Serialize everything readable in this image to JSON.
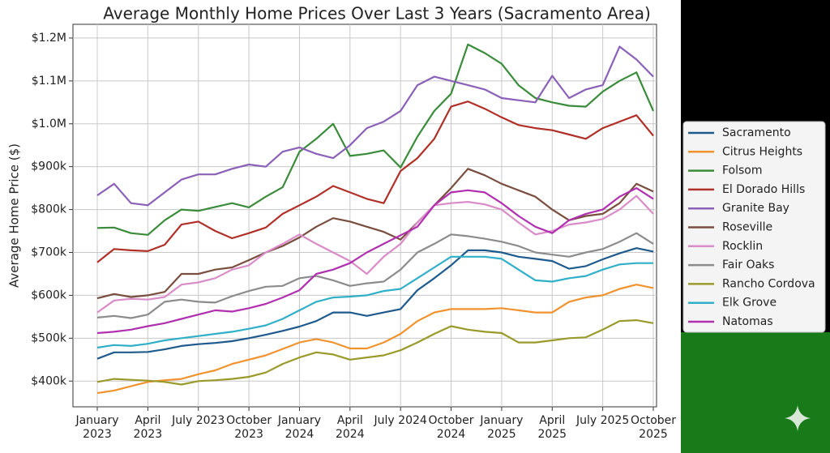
{
  "chart_data": {
    "type": "line",
    "title": "Average Monthly Home Prices Over Last 3 Years (Sacramento Area)",
    "y_label": "Average Home Price ($)",
    "grid": true,
    "legend": "right",
    "x": [
      "2023-01",
      "2023-02",
      "2023-03",
      "2023-04",
      "2023-05",
      "2023-06",
      "2023-07",
      "2023-08",
      "2023-09",
      "2023-10",
      "2023-11",
      "2023-12",
      "2024-01",
      "2024-02",
      "2024-03",
      "2024-04",
      "2024-05",
      "2024-06",
      "2024-07",
      "2024-08",
      "2024-09",
      "2024-10",
      "2024-11",
      "2024-12",
      "2025-01",
      "2025-02",
      "2025-03",
      "2025-04",
      "2025-05",
      "2025-06",
      "2025-07",
      "2025-08",
      "2025-09",
      "2025-10"
    ],
    "xticks": [
      {
        "value": "2023-01",
        "label": "January 2023"
      },
      {
        "value": "2023-04",
        "label": "April 2023"
      },
      {
        "value": "2023-07",
        "label": "July 2023"
      },
      {
        "value": "2023-10",
        "label": "October 2023"
      },
      {
        "value": "2024-01",
        "label": "January 2024"
      },
      {
        "value": "2024-04",
        "label": "April 2024"
      },
      {
        "value": "2024-07",
        "label": "July 2024"
      },
      {
        "value": "2024-10",
        "label": "October 2024"
      },
      {
        "value": "2025-01",
        "label": "January 2025"
      },
      {
        "value": "2025-04",
        "label": "April 2025"
      },
      {
        "value": "2025-07",
        "label": "July 2025"
      },
      {
        "value": "2025-10",
        "label": "October 2025"
      }
    ],
    "ylim": [
      340000,
      1232000
    ],
    "yticks": [
      {
        "value": 400000,
        "label": "$400k"
      },
      {
        "value": 500000,
        "label": "$500k"
      },
      {
        "value": 600000,
        "label": "$600k"
      },
      {
        "value": 700000,
        "label": "$700k"
      },
      {
        "value": 800000,
        "label": "$800k"
      },
      {
        "value": 900000,
        "label": "$900k"
      },
      {
        "value": 1000000,
        "label": "$1.0M"
      },
      {
        "value": 1100000,
        "label": "$1.1M"
      },
      {
        "value": 1200000,
        "label": "$1.2M"
      }
    ],
    "series": [
      {
        "name": "Sacramento",
        "color": "#1f5a8c",
        "values": [
          452000,
          467000,
          467000,
          468000,
          474000,
          482000,
          486000,
          489000,
          493000,
          500000,
          508000,
          517000,
          527000,
          540000,
          560000,
          560000,
          552000,
          560000,
          568000,
          612000,
          640000,
          670000,
          705000,
          705000,
          700000,
          690000,
          685000,
          680000,
          662000,
          668000,
          684000,
          698000,
          710000,
          702000
        ]
      },
      {
        "name": "Citrus Heights",
        "color": "#f0932e",
        "values": [
          372000,
          378000,
          388000,
          398000,
          402000,
          405000,
          416000,
          425000,
          440000,
          450000,
          460000,
          475000,
          490000,
          498000,
          490000,
          476000,
          476000,
          490000,
          510000,
          540000,
          560000,
          568000,
          568000,
          568000,
          570000,
          565000,
          560000,
          560000,
          585000,
          595000,
          600000,
          615000,
          625000,
          617000
        ]
      },
      {
        "name": "Folsom",
        "color": "#3a8c3a",
        "values": [
          757000,
          758000,
          745000,
          741000,
          775000,
          800000,
          797000,
          806000,
          815000,
          805000,
          830000,
          852000,
          935000,
          965000,
          1000000,
          925000,
          930000,
          938000,
          898000,
          970000,
          1030000,
          1070000,
          1185000,
          1165000,
          1140000,
          1090000,
          1060000,
          1050000,
          1042000,
          1040000,
          1075000,
          1100000,
          1120000,
          1030000
        ]
      },
      {
        "name": "El Dorado Hills",
        "color": "#b03028",
        "values": [
          677000,
          708000,
          705000,
          703000,
          718000,
          765000,
          772000,
          750000,
          733000,
          745000,
          758000,
          790000,
          810000,
          830000,
          855000,
          840000,
          825000,
          815000,
          890000,
          920000,
          965000,
          1040000,
          1052000,
          1035000,
          1015000,
          997000,
          990000,
          985000,
          975000,
          965000,
          990000,
          1005000,
          1020000,
          972000
        ]
      },
      {
        "name": "Granite Bay",
        "color": "#8a60b8",
        "values": [
          833000,
          860000,
          815000,
          810000,
          840000,
          870000,
          882000,
          882000,
          895000,
          905000,
          900000,
          935000,
          945000,
          930000,
          920000,
          950000,
          990000,
          1005000,
          1030000,
          1090000,
          1110000,
          1100000,
          1090000,
          1080000,
          1060000,
          1055000,
          1050000,
          1112000,
          1060000,
          1080000,
          1090000,
          1180000,
          1150000,
          1110000
        ]
      },
      {
        "name": "Roseville",
        "color": "#7a4e3e",
        "values": [
          593000,
          603000,
          596000,
          600000,
          608000,
          650000,
          650000,
          660000,
          665000,
          682000,
          700000,
          715000,
          735000,
          760000,
          780000,
          772000,
          760000,
          748000,
          730000,
          770000,
          810000,
          850000,
          895000,
          880000,
          860000,
          845000,
          830000,
          800000,
          775000,
          785000,
          790000,
          815000,
          860000,
          842000
        ]
      },
      {
        "name": "Rocklin",
        "color": "#d98cc8",
        "values": [
          560000,
          588000,
          592000,
          590000,
          596000,
          625000,
          630000,
          640000,
          660000,
          670000,
          700000,
          720000,
          742000,
          720000,
          700000,
          680000,
          650000,
          690000,
          720000,
          770000,
          810000,
          815000,
          818000,
          812000,
          800000,
          770000,
          742000,
          750000,
          765000,
          770000,
          778000,
          800000,
          832000,
          790000
        ]
      },
      {
        "name": "Fair Oaks",
        "color": "#8c8c8c",
        "values": [
          548000,
          552000,
          547000,
          555000,
          585000,
          590000,
          585000,
          583000,
          598000,
          610000,
          620000,
          622000,
          640000,
          645000,
          635000,
          622000,
          628000,
          632000,
          660000,
          700000,
          720000,
          742000,
          738000,
          732000,
          725000,
          715000,
          700000,
          695000,
          690000,
          700000,
          708000,
          725000,
          745000,
          720000
        ]
      },
      {
        "name": "Rancho Cordova",
        "color": "#9a9a2a",
        "values": [
          398000,
          405000,
          403000,
          401000,
          398000,
          392000,
          400000,
          402000,
          405000,
          410000,
          420000,
          440000,
          455000,
          467000,
          462000,
          450000,
          455000,
          460000,
          472000,
          490000,
          510000,
          528000,
          520000,
          515000,
          512000,
          490000,
          490000,
          495000,
          500000,
          502000,
          520000,
          540000,
          542000,
          535000
        ]
      },
      {
        "name": "Elk Grove",
        "color": "#30b0c8",
        "values": [
          478000,
          484000,
          482000,
          487000,
          495000,
          500000,
          505000,
          510000,
          515000,
          522000,
          530000,
          545000,
          565000,
          585000,
          595000,
          597000,
          600000,
          610000,
          615000,
          640000,
          665000,
          690000,
          690000,
          690000,
          685000,
          660000,
          635000,
          632000,
          640000,
          645000,
          660000,
          672000,
          675000,
          675000
        ]
      },
      {
        "name": "Natomas",
        "color": "#b030b0",
        "values": [
          512000,
          515000,
          520000,
          528000,
          535000,
          545000,
          555000,
          565000,
          562000,
          570000,
          580000,
          595000,
          612000,
          650000,
          660000,
          675000,
          700000,
          720000,
          740000,
          760000,
          810000,
          840000,
          845000,
          840000,
          815000,
          785000,
          760000,
          745000,
          775000,
          790000,
          800000,
          830000,
          850000,
          825000
        ]
      }
    ]
  }
}
